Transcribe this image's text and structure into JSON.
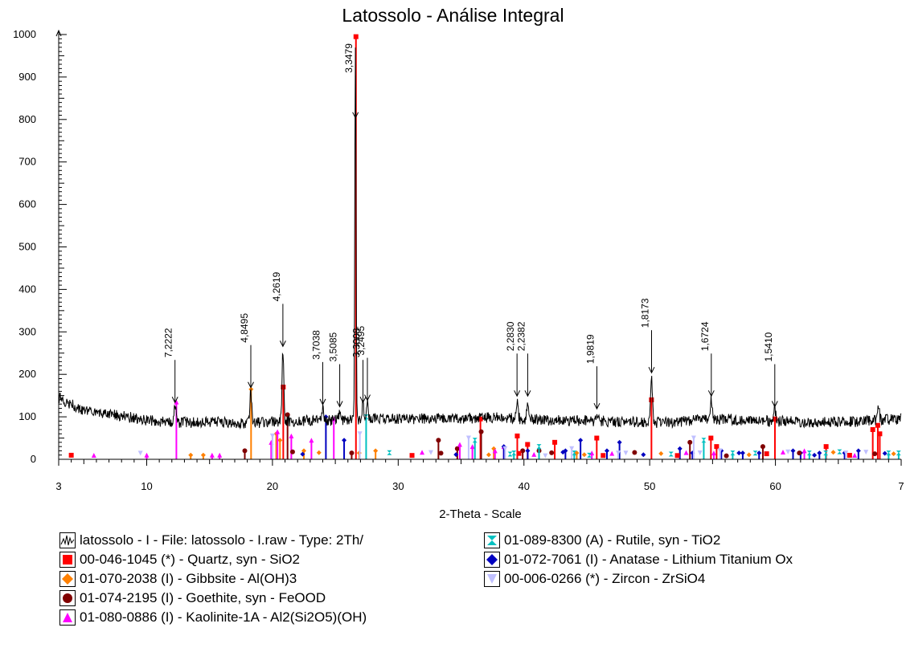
{
  "chart_data": {
    "type": "line",
    "title": "Latossolo - Análise Integral",
    "xlabel": "2-Theta - Scale",
    "ylabel": "",
    "xlim": [
      3,
      70
    ],
    "ylim": [
      0,
      1000
    ],
    "x_ticks": [
      "3",
      "10",
      "20",
      "30",
      "40",
      "50",
      "60",
      "7"
    ],
    "y_ticks": [
      "0",
      "100",
      "200",
      "300",
      "400",
      "500",
      "600",
      "700",
      "800",
      "900",
      "1000"
    ],
    "series": [
      {
        "name": "latossolo - I - File: latossolo - I.raw - Type: 2Th/",
        "color": "#000000",
        "baseline": [
          [
            3,
            145
          ],
          [
            5,
            115
          ],
          [
            8,
            102
          ],
          [
            10,
            92
          ],
          [
            12,
            86
          ],
          [
            15,
            88
          ],
          [
            18,
            85
          ],
          [
            20,
            88
          ],
          [
            22,
            90
          ],
          [
            25,
            92
          ],
          [
            28,
            96
          ],
          [
            30,
            95
          ],
          [
            32,
            96
          ],
          [
            34,
            95
          ],
          [
            36,
            97
          ],
          [
            38,
            98
          ],
          [
            40,
            95
          ],
          [
            42,
            92
          ],
          [
            44,
            92
          ],
          [
            46,
            90
          ],
          [
            48,
            88
          ],
          [
            50,
            86
          ],
          [
            52,
            88
          ],
          [
            54,
            92
          ],
          [
            56,
            95
          ],
          [
            58,
            92
          ],
          [
            60,
            90
          ],
          [
            62,
            88
          ],
          [
            64,
            88
          ],
          [
            66,
            88
          ],
          [
            68,
            92
          ],
          [
            70,
            95
          ]
        ],
        "peaks": [
          [
            12.25,
            130
          ],
          [
            18.28,
            160
          ],
          [
            20.83,
            255
          ],
          [
            24.0,
            120
          ],
          [
            25.35,
            115
          ],
          [
            26.6,
            980
          ],
          [
            27.2,
            130
          ],
          [
            27.55,
            135
          ],
          [
            39.45,
            140
          ],
          [
            40.3,
            140
          ],
          [
            45.8,
            110
          ],
          [
            50.15,
            195
          ],
          [
            54.9,
            140
          ],
          [
            59.95,
            120
          ],
          [
            68.2,
            120
          ]
        ]
      }
    ],
    "peak_labels": [
      {
        "x": 12.25,
        "y": 130,
        "label": "7,2222"
      },
      {
        "x": 18.28,
        "y": 165,
        "label": "4,8495"
      },
      {
        "x": 20.83,
        "y": 262,
        "label": "4,2619"
      },
      {
        "x": 24.0,
        "y": 125,
        "label": "3,7038"
      },
      {
        "x": 25.35,
        "y": 120,
        "label": "3,5085"
      },
      {
        "x": 26.6,
        "y": 800,
        "label": "3,3479"
      },
      {
        "x": 27.2,
        "y": 130,
        "label": "3,3008"
      },
      {
        "x": 27.55,
        "y": 135,
        "label": "3,2495"
      },
      {
        "x": 39.45,
        "y": 145,
        "label": "2,2830"
      },
      {
        "x": 40.3,
        "y": 145,
        "label": "2,2382"
      },
      {
        "x": 45.8,
        "y": 115,
        "label": "1,9819"
      },
      {
        "x": 50.15,
        "y": 200,
        "label": "1,8173"
      },
      {
        "x": 54.9,
        "y": 145,
        "label": "1,6724"
      },
      {
        "x": 59.95,
        "y": 120,
        "label": "1,5410"
      }
    ],
    "reference_phases": [
      {
        "name": "00-046-1045 (*) - Quartz, syn - SiO2",
        "color": "#ff0000",
        "marker": "square",
        "sticks": [
          [
            20.86,
            170
          ],
          [
            26.64,
            995
          ],
          [
            36.54,
            95
          ],
          [
            39.47,
            55
          ],
          [
            40.29,
            35
          ],
          [
            42.45,
            40
          ],
          [
            45.79,
            50
          ],
          [
            50.14,
            140
          ],
          [
            54.87,
            50
          ],
          [
            55.32,
            30
          ],
          [
            59.96,
            95
          ],
          [
            64.03,
            30
          ],
          [
            67.74,
            70
          ],
          [
            68.14,
            80
          ],
          [
            68.3,
            60
          ]
        ]
      },
      {
        "name": "01-070-2038 (I) - Gibbsite - Al(OH)3",
        "color": "#ff8000",
        "marker": "diamond",
        "sticks": [
          [
            13.5,
            10
          ],
          [
            14.5,
            10
          ],
          [
            18.3,
            165
          ],
          [
            20.3,
            60
          ],
          [
            20.6,
            45
          ],
          [
            22.5,
            20
          ],
          [
            26.9,
            15
          ],
          [
            28.2,
            20
          ],
          [
            37.6,
            25
          ],
          [
            44.2,
            15
          ]
        ]
      },
      {
        "name": "01-074-2195 (I) - Goethite, syn - FeOOD",
        "color": "#800000",
        "marker": "circle",
        "sticks": [
          [
            17.8,
            20
          ],
          [
            21.2,
            105
          ],
          [
            26.3,
            15
          ],
          [
            33.2,
            45
          ],
          [
            34.7,
            25
          ],
          [
            36.6,
            65
          ],
          [
            39.9,
            20
          ],
          [
            41.2,
            20
          ],
          [
            53.2,
            40
          ],
          [
            59.0,
            30
          ]
        ]
      },
      {
        "name": "01-080-0886 (I) - Kaolinite-1A - Al2(Si2O5)(OH)",
        "color": "#ff00ff",
        "marker": "triangle",
        "sticks": [
          [
            10.0,
            10
          ],
          [
            12.36,
            135
          ],
          [
            15.2,
            10
          ],
          [
            15.8,
            10
          ],
          [
            19.9,
            40
          ],
          [
            20.4,
            65
          ],
          [
            21.5,
            55
          ],
          [
            23.1,
            45
          ],
          [
            24.88,
            95
          ],
          [
            34.9,
            35
          ],
          [
            35.9,
            30
          ],
          [
            37.7,
            20
          ],
          [
            38.4,
            30
          ],
          [
            45.4,
            15
          ],
          [
            55.1,
            15
          ],
          [
            62.3,
            20
          ]
        ]
      },
      {
        "name": "01-089-8300 (A) - Rutile, syn - TiO2",
        "color": "#00c0c0",
        "marker": "hourglass",
        "sticks": [
          [
            27.45,
            100
          ],
          [
            36.1,
            45
          ],
          [
            39.2,
            15
          ],
          [
            41.2,
            30
          ],
          [
            44.0,
            15
          ],
          [
            54.3,
            45
          ],
          [
            56.6,
            15
          ],
          [
            62.7,
            15
          ],
          [
            64.0,
            15
          ],
          [
            69.0,
            15
          ],
          [
            69.8,
            15
          ]
        ]
      },
      {
        "name": "01-072-7061 (I) - Anatase - Lithium Titanium Ox",
        "color": "#0000c0",
        "marker": "diamond",
        "sticks": [
          [
            24.25,
            100
          ],
          [
            25.7,
            45
          ],
          [
            38.4,
            30
          ],
          [
            40.3,
            20
          ],
          [
            43.3,
            20
          ],
          [
            44.5,
            45
          ],
          [
            46.6,
            20
          ],
          [
            47.6,
            40
          ],
          [
            52.4,
            25
          ],
          [
            53.4,
            15
          ],
          [
            55.7,
            20
          ],
          [
            57.4,
            15
          ],
          [
            58.7,
            15
          ],
          [
            61.4,
            20
          ],
          [
            62.0,
            15
          ],
          [
            63.5,
            15
          ],
          [
            65.5,
            15
          ],
          [
            66.6,
            20
          ]
        ]
      },
      {
        "name": "00-006-0266 (*) - Zircon - ZrSiO4",
        "color": "#c0c0ff",
        "marker": "triangle-down",
        "sticks": [
          [
            20.0,
            55
          ],
          [
            26.95,
            60
          ],
          [
            35.6,
            50
          ],
          [
            38.5,
            25
          ],
          [
            43.8,
            25
          ],
          [
            47.5,
            15
          ],
          [
            53.5,
            50
          ],
          [
            55.6,
            20
          ],
          [
            65.6,
            15
          ]
        ]
      }
    ],
    "pattern_marker_positions": [
      4.0,
      5.8,
      9.5,
      21.6,
      22.4,
      23.7,
      29.3,
      31.1,
      31.9,
      32.6,
      33.4,
      34.6,
      37.2,
      38.9,
      39.6,
      40.8,
      41.7,
      42.2,
      43.1,
      44.8,
      45.2,
      46.3,
      47.0,
      48.1,
      48.8,
      49.5,
      50.9,
      51.7,
      52.2,
      52.9,
      54.0,
      56.1,
      57.1,
      57.9,
      58.4,
      59.3,
      60.6,
      61.0,
      61.9,
      63.1,
      64.6,
      65.1,
      65.9,
      66.3,
      67.2,
      67.9,
      68.7,
      69.4
    ]
  },
  "legend": [
    {
      "label": "latossolo - I - File: latossolo - I.raw - Type: 2Th/",
      "type": "pattern",
      "color": "#000000",
      "icon": "pattern-icon"
    },
    {
      "label": "00-046-1045 (*) - Quartz, syn - SiO2",
      "type": "square",
      "color": "#ff0000",
      "icon": "square-icon"
    },
    {
      "label": "01-070-2038 (I) - Gibbsite - Al(OH)3",
      "type": "diamond",
      "color": "#ff8000",
      "icon": "diamond-icon"
    },
    {
      "label": "01-074-2195 (I) - Goethite, syn - FeOOD",
      "type": "circle",
      "color": "#800000",
      "icon": "circle-icon"
    },
    {
      "label": "01-080-0886 (I) - Kaolinite-1A - Al2(Si2O5)(OH)",
      "type": "triangle",
      "color": "#ff00ff",
      "icon": "triangle-icon"
    },
    {
      "label": "01-089-8300 (A) - Rutile, syn - TiO2",
      "type": "hourglass",
      "color": "#00c0c0",
      "icon": "hourglass-icon"
    },
    {
      "label": "01-072-7061 (I) - Anatase - Lithium Titanium Ox",
      "type": "diamond",
      "color": "#0000c0",
      "icon": "diamond-icon"
    },
    {
      "label": "00-006-0266 (*) - Zircon - ZrSiO4",
      "type": "triangle-down",
      "color": "#c0c0ff",
      "icon": "triangle-down-icon"
    }
  ]
}
